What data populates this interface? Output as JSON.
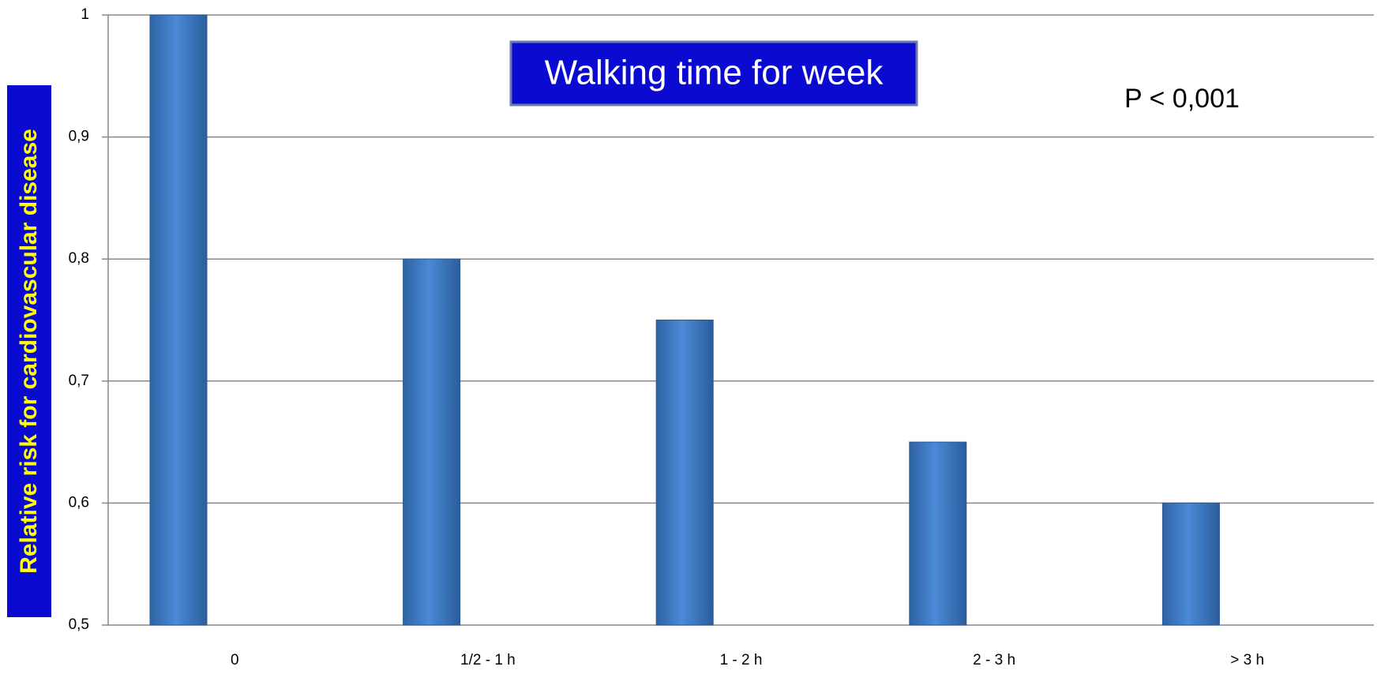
{
  "chart_data": {
    "type": "bar",
    "title": "Walking time for week",
    "annotation": "P < 0,001",
    "y_label": "Relative risk for cardiovascular disease",
    "categories": [
      "0",
      "1/2 - 1 h",
      "1 - 2 h",
      "2 - 3 h",
      "> 3 h"
    ],
    "values": [
      1,
      0.8,
      0.75,
      0.65,
      0.6
    ],
    "color": "#3a78c4",
    "ylim": [
      0.5,
      1
    ],
    "yticks": [
      {
        "value": 0.5,
        "label": "0,5"
      },
      {
        "value": 0.6,
        "label": "0,6"
      },
      {
        "value": 0.7,
        "label": "0,7"
      },
      {
        "value": 0.8,
        "label": "0,8"
      },
      {
        "value": 0.9,
        "label": "0,9"
      },
      1
    ],
    "grid": true
  }
}
